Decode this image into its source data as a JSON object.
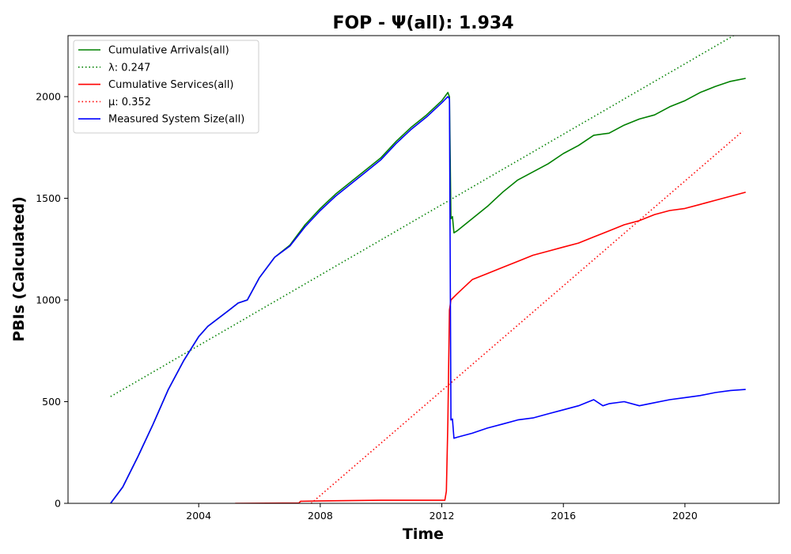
{
  "chart_data": {
    "type": "line",
    "title": "FOP -  Ψ(all): 1.934",
    "xlabel": "Time",
    "ylabel": "PBIs (Calculated)",
    "xlim": [
      1999.7,
      2023.1
    ],
    "ylim": [
      0,
      2300
    ],
    "x_ticks": [
      2004,
      2008,
      2012,
      2016,
      2020
    ],
    "y_ticks": [
      0,
      500,
      1000,
      1500,
      2000
    ],
    "legend_position": "upper-left",
    "grid": false,
    "series": [
      {
        "name": "Cumulative Arrivals(all)",
        "color": "#008000",
        "style": "solid",
        "x": [
          2001.1,
          2001.5,
          2002.0,
          2002.5,
          2003.0,
          2003.5,
          2004.0,
          2004.3,
          2005.0,
          2005.3,
          2005.6,
          2006.0,
          2006.5,
          2007.0,
          2007.5,
          2008.0,
          2008.5,
          2009.0,
          2009.5,
          2010.0,
          2010.5,
          2011.0,
          2011.5,
          2012.0,
          2012.2,
          2012.25,
          2012.3,
          2012.35,
          2012.4,
          2012.5,
          2013.0,
          2013.5,
          2014.0,
          2014.5,
          2015.0,
          2015.5,
          2016.0,
          2016.5,
          2017.0,
          2017.5,
          2018.0,
          2018.5,
          2019.0,
          2019.5,
          2020.0,
          2020.5,
          2021.0,
          2021.5,
          2022.0
        ],
        "y": [
          0,
          80,
          230,
          390,
          560,
          700,
          820,
          870,
          950,
          985,
          1000,
          1110,
          1210,
          1270,
          1370,
          1450,
          1520,
          1580,
          1640,
          1700,
          1780,
          1850,
          1910,
          1980,
          2020,
          2000,
          1400,
          1410,
          1330,
          1340,
          1400,
          1460,
          1530,
          1590,
          1630,
          1670,
          1720,
          1760,
          1810,
          1820,
          1860,
          1890,
          1910,
          1950,
          1980,
          2020,
          2050,
          2075,
          2090
        ]
      },
      {
        "name": "λ: 0.247",
        "color": "#008000",
        "style": "dotted",
        "x": [
          2001.1,
          2021.6
        ],
        "y": [
          525,
          2300
        ]
      },
      {
        "name": "Cumulative Services(all)",
        "color": "#ff0000",
        "style": "solid",
        "x": [
          2005.2,
          2007.3,
          2007.35,
          2008.0,
          2010.0,
          2012.1,
          2012.15,
          2012.2,
          2012.25,
          2012.3,
          2012.5,
          2013.0,
          2013.5,
          2014.0,
          2014.5,
          2015.0,
          2015.5,
          2016.0,
          2016.5,
          2017.0,
          2017.5,
          2018.0,
          2018.5,
          2019.0,
          2019.5,
          2020.0,
          2020.5,
          2021.0,
          2021.5,
          2022.0
        ],
        "y": [
          0,
          2,
          10,
          12,
          15,
          15,
          60,
          400,
          950,
          1000,
          1030,
          1100,
          1130,
          1160,
          1190,
          1220,
          1240,
          1260,
          1280,
          1310,
          1340,
          1370,
          1390,
          1420,
          1440,
          1450,
          1470,
          1490,
          1510,
          1530
        ]
      },
      {
        "name": "μ: 0.352",
        "color": "#ff0000",
        "style": "dotted",
        "x": [
          2007.7,
          2021.9
        ],
        "y": [
          0,
          1830
        ]
      },
      {
        "name": "Measured System Size(all)",
        "color": "#0000ff",
        "style": "solid",
        "x": [
          2001.1,
          2001.5,
          2002.0,
          2002.5,
          2003.0,
          2003.5,
          2004.0,
          2004.3,
          2005.0,
          2005.3,
          2005.6,
          2006.0,
          2006.5,
          2007.0,
          2007.5,
          2008.0,
          2008.5,
          2009.0,
          2009.5,
          2010.0,
          2010.5,
          2011.0,
          2011.5,
          2012.0,
          2012.2,
          2012.25,
          2012.3,
          2012.35,
          2012.4,
          2012.5,
          2013.0,
          2013.5,
          2014.0,
          2014.5,
          2015.0,
          2015.5,
          2016.0,
          2016.5,
          2017.0,
          2017.3,
          2017.5,
          2018.0,
          2018.5,
          2019.0,
          2019.5,
          2020.0,
          2020.5,
          2021.0,
          2021.5,
          2022.0
        ],
        "y": [
          0,
          80,
          230,
          390,
          560,
          700,
          820,
          870,
          950,
          985,
          1000,
          1110,
          1210,
          1265,
          1360,
          1440,
          1510,
          1570,
          1630,
          1690,
          1770,
          1840,
          1900,
          1970,
          2000,
          1990,
          410,
          415,
          320,
          325,
          345,
          370,
          390,
          410,
          420,
          440,
          460,
          480,
          510,
          480,
          490,
          500,
          480,
          495,
          510,
          520,
          530,
          545,
          555,
          560
        ]
      }
    ]
  }
}
